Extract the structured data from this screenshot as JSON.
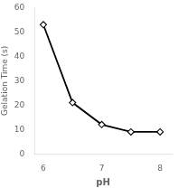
{
  "chart_data": {
    "type": "line",
    "x": [
      6.0,
      6.5,
      7.0,
      7.5,
      8.0
    ],
    "values": [
      53,
      21,
      12,
      9,
      9
    ],
    "color": "#000000",
    "marker": "diamond",
    "xlabel": "pH",
    "ylabel": "Gelation Time (s)",
    "xlim": [
      5.85,
      8.2
    ],
    "ylim": [
      0,
      60
    ],
    "xticks": [
      6,
      7,
      8
    ],
    "yticks": [
      0,
      10,
      20,
      30,
      40,
      50,
      60
    ],
    "grid": false
  }
}
